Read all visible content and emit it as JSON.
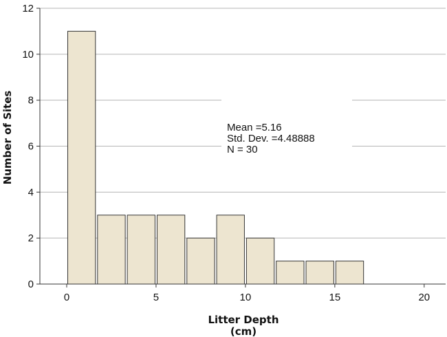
{
  "chart_data": {
    "type": "bar",
    "subtype": "histogram",
    "bin_width": 1.667,
    "bins": [
      {
        "start": 0.0,
        "end": 1.667,
        "count": 11
      },
      {
        "start": 1.667,
        "end": 3.333,
        "count": 3
      },
      {
        "start": 3.333,
        "end": 5.0,
        "count": 3
      },
      {
        "start": 5.0,
        "end": 6.667,
        "count": 3
      },
      {
        "start": 6.667,
        "end": 8.333,
        "count": 2
      },
      {
        "start": 8.333,
        "end": 10.0,
        "count": 3
      },
      {
        "start": 10.0,
        "end": 11.667,
        "count": 2
      },
      {
        "start": 11.667,
        "end": 13.333,
        "count": 1
      },
      {
        "start": 13.333,
        "end": 15.0,
        "count": 1
      },
      {
        "start": 15.0,
        "end": 16.667,
        "count": 1
      }
    ],
    "xlabel": "Litter Depth",
    "xlabel_unit": "(cm)",
    "ylabel": "Number of Sites",
    "xlim": [
      -1.5,
      21.2
    ],
    "ylim": [
      0,
      12
    ],
    "xticks": [
      0,
      5,
      10,
      15,
      20
    ],
    "yticks": [
      0,
      2,
      4,
      6,
      8,
      10,
      12
    ],
    "grid": "horizontal",
    "stats": {
      "mean": "Mean =5.16",
      "std_dev": "Std. Dev. =4.48888",
      "n": "N = 30"
    },
    "colors": {
      "bar_fill": "#ede5d0",
      "bar_stroke": "#333333",
      "grid": "#b5b5b5",
      "axis": "#333333"
    }
  }
}
